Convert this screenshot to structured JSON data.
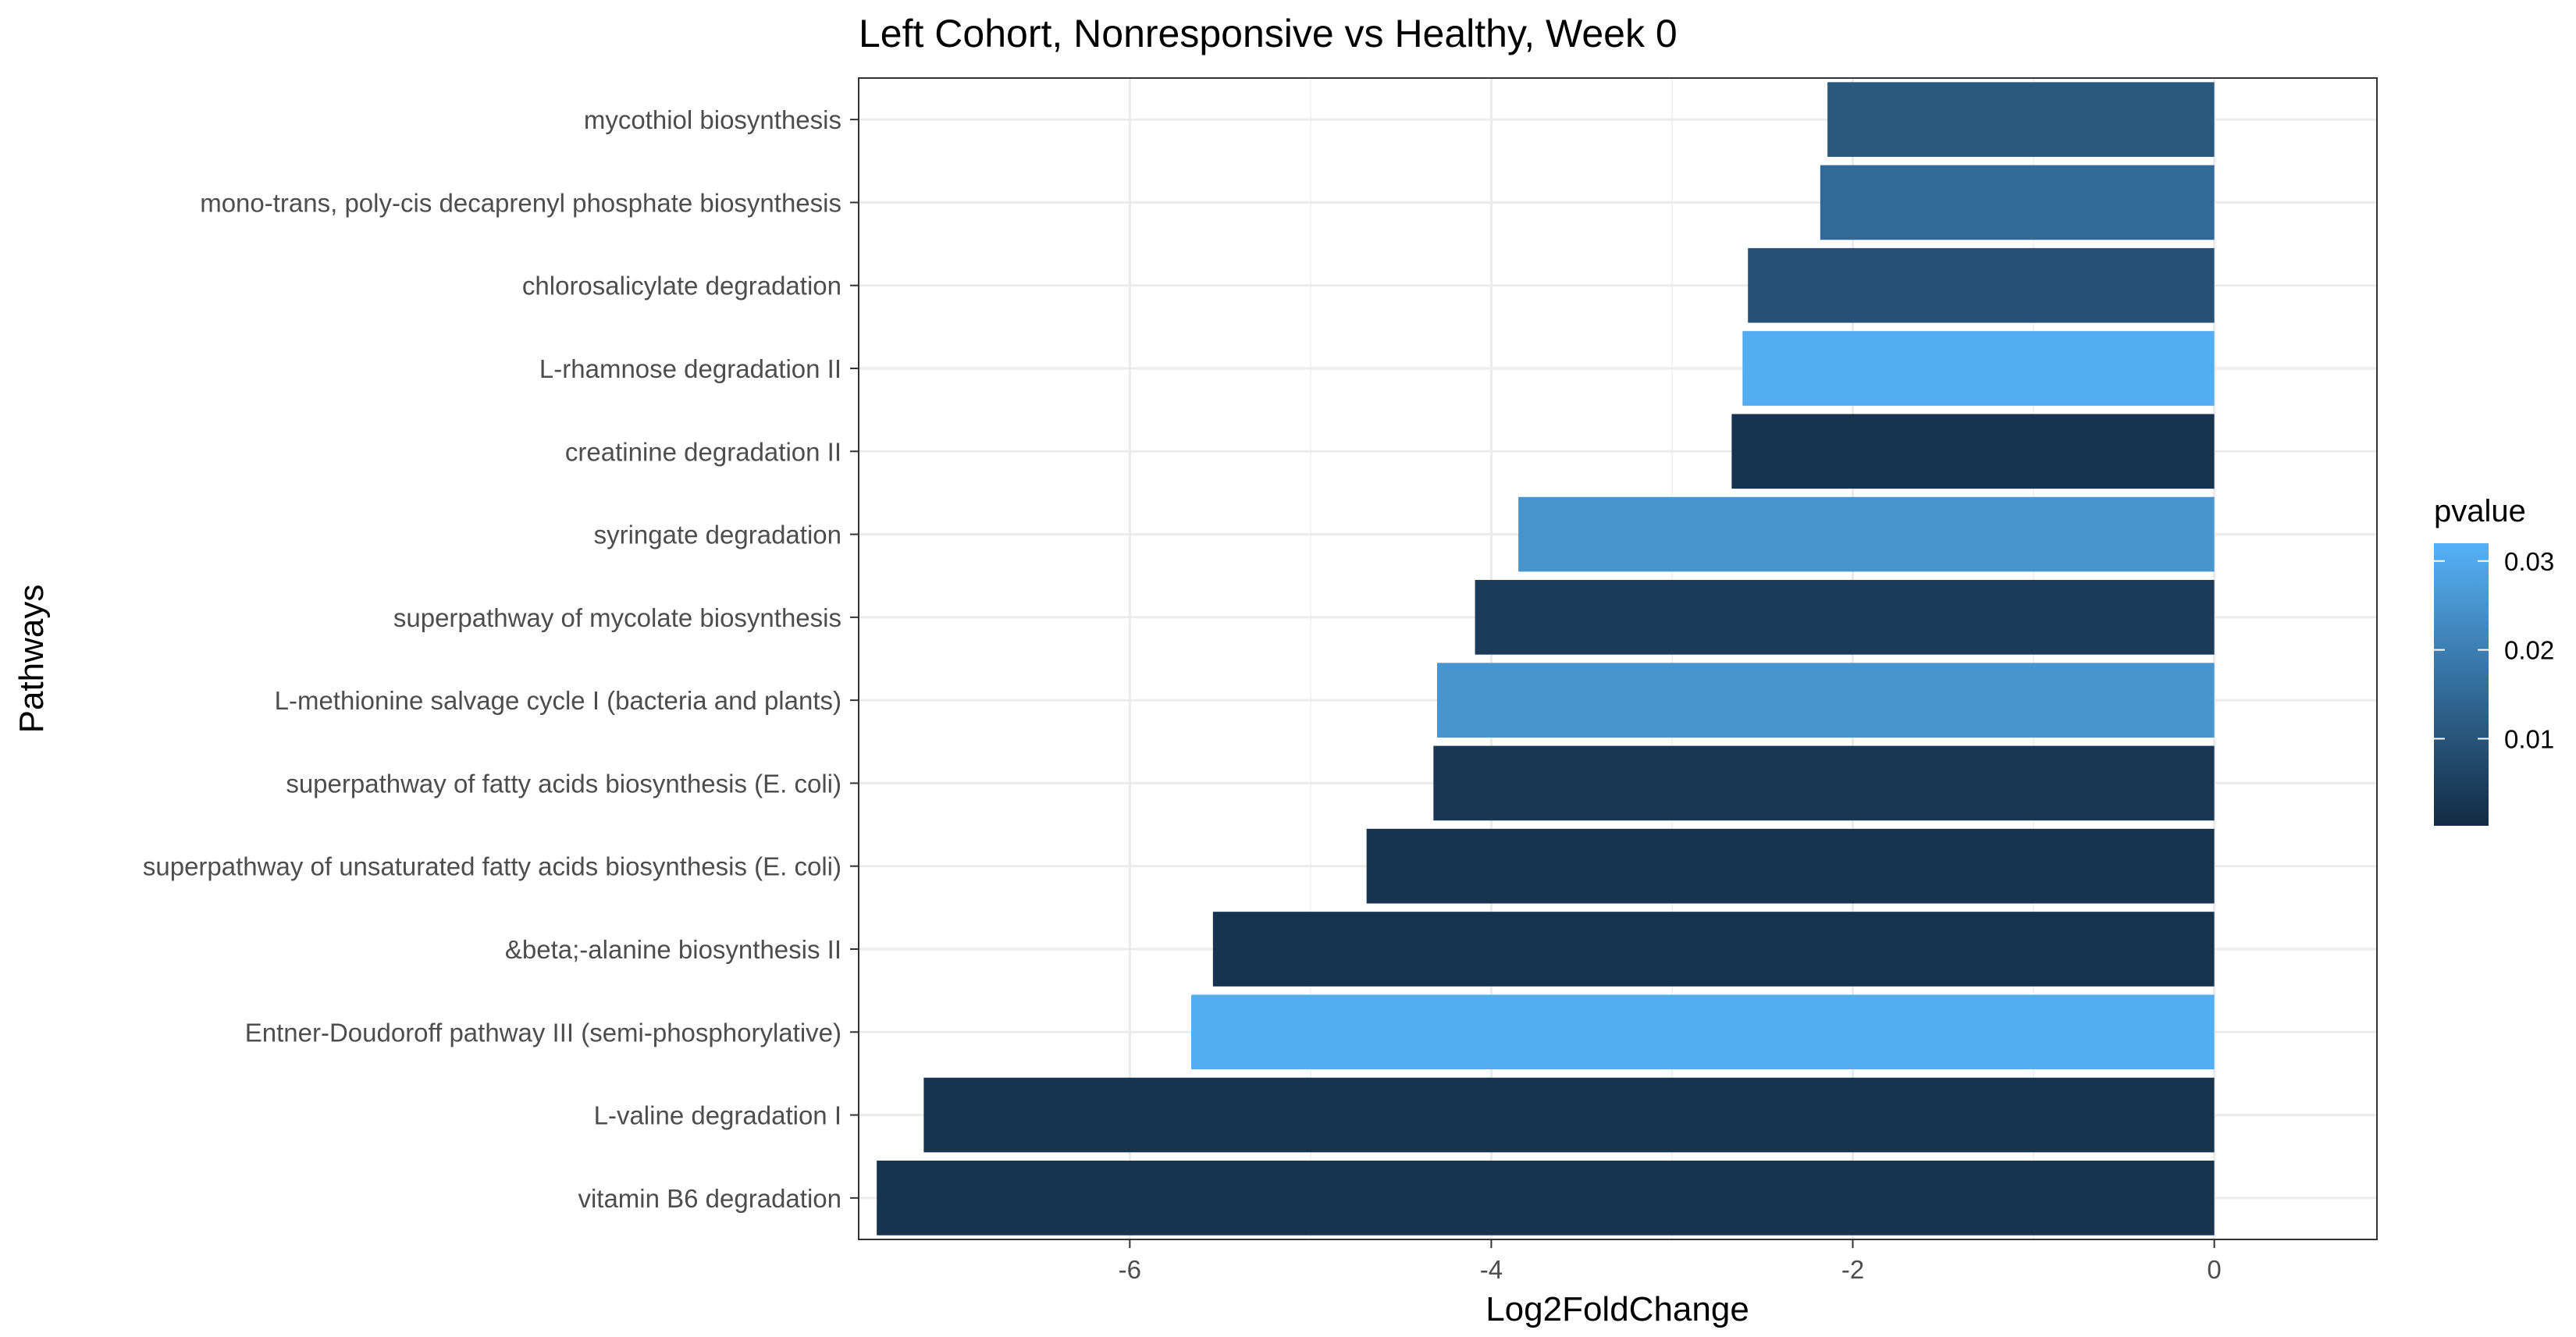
{
  "chart_data": {
    "type": "bar",
    "orientation": "horizontal",
    "title": "Left Cohort, Nonresponsive vs Healthy, Week 0",
    "xlabel": "Log2FoldChange",
    "ylabel": "Pathways",
    "xlim": [
      -7.5,
      0.9
    ],
    "xticks": [
      -6,
      -4,
      -2,
      0
    ],
    "xtick_labels": [
      "-6",
      "-4",
      "-2",
      "0"
    ],
    "grid": true,
    "legend": {
      "title": "pvalue",
      "placement": "right",
      "type": "colorbar",
      "range": [
        0.0002,
        0.032
      ],
      "ticks": [
        0.01,
        0.02,
        0.03
      ],
      "tick_labels": [
        "0.01",
        "0.02",
        "0.03"
      ],
      "low_color": "#132B43",
      "high_color": "#56B1F7"
    },
    "categories": [
      "mycothiol biosynthesis",
      "mono-trans, poly-cis decaprenyl phosphate biosynthesis",
      "chlorosalicylate degradation",
      "L-rhamnose degradation II",
      "creatinine degradation II",
      "syringate degradation",
      "superpathway of mycolate biosynthesis",
      "L-methionine salvage cycle I (bacteria and plants)",
      "superpathway of fatty acids biosynthesis (E. coli)",
      "superpathway of unsaturated fatty acids biosynthesis (E. coli)",
      "&beta;-alanine biosynthesis II",
      "Entner-Doudoroff pathway III (semi-phosphorylative)",
      "L-valine degradation I",
      "vitamin B6 degradation"
    ],
    "values": [
      -2.14,
      -2.18,
      -2.58,
      -2.61,
      -2.67,
      -3.85,
      -4.09,
      -4.3,
      -4.32,
      -4.69,
      -5.54,
      -5.66,
      -7.14,
      -7.4
    ],
    "pvalues": [
      0.011,
      0.015,
      0.009,
      0.031,
      0.002,
      0.025,
      0.004,
      0.025,
      0.003,
      0.002,
      0.002,
      0.031,
      0.002,
      0.002
    ]
  }
}
